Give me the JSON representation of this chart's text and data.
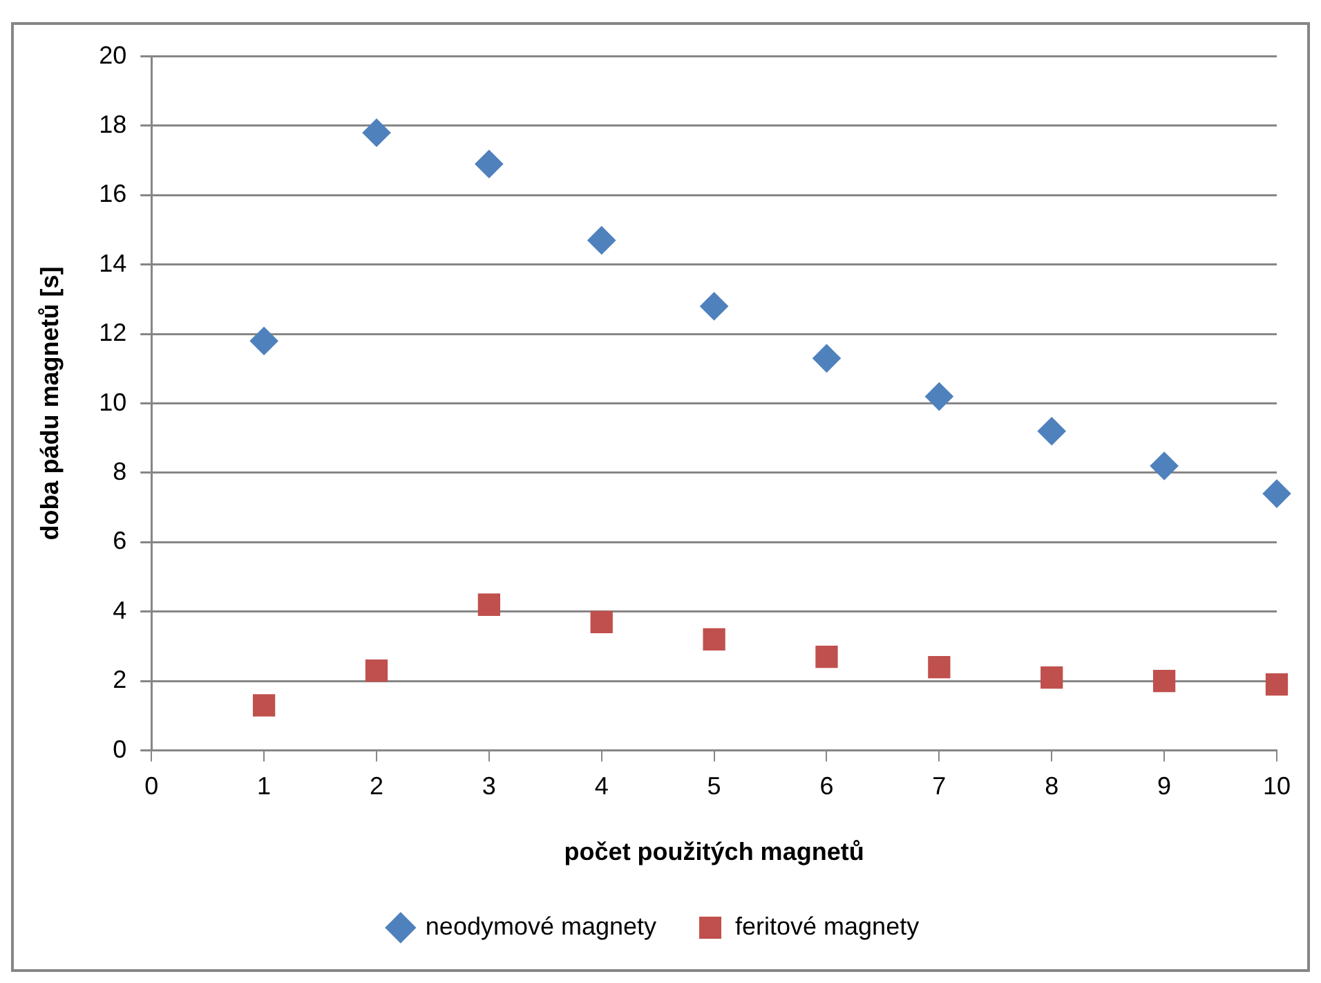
{
  "chart_data": {
    "type": "scatter",
    "xlabel": "počet použitých magnetů",
    "ylabel": "doba pádu magnetů [s]",
    "x": [
      1,
      2,
      3,
      4,
      5,
      6,
      7,
      8,
      9,
      10
    ],
    "series": [
      {
        "name": "neodymové magnety",
        "color": "#4f81bd",
        "marker": "diamond",
        "values": [
          11.8,
          17.8,
          16.9,
          14.7,
          12.8,
          11.3,
          10.2,
          9.2,
          8.2,
          7.4
        ]
      },
      {
        "name": "feritové magnety",
        "color": "#c0504d",
        "marker": "square",
        "values": [
          1.3,
          2.3,
          4.2,
          3.7,
          3.2,
          2.7,
          2.4,
          2.1,
          2.0,
          1.9
        ]
      }
    ],
    "xlim": [
      0,
      10
    ],
    "xticks": [
      0,
      1,
      2,
      3,
      4,
      5,
      6,
      7,
      8,
      9,
      10
    ],
    "ylim": [
      0,
      20
    ],
    "yticks": [
      0,
      2,
      4,
      6,
      8,
      10,
      12,
      14,
      16,
      18,
      20
    ],
    "grid": "y",
    "legend": "bottom"
  }
}
